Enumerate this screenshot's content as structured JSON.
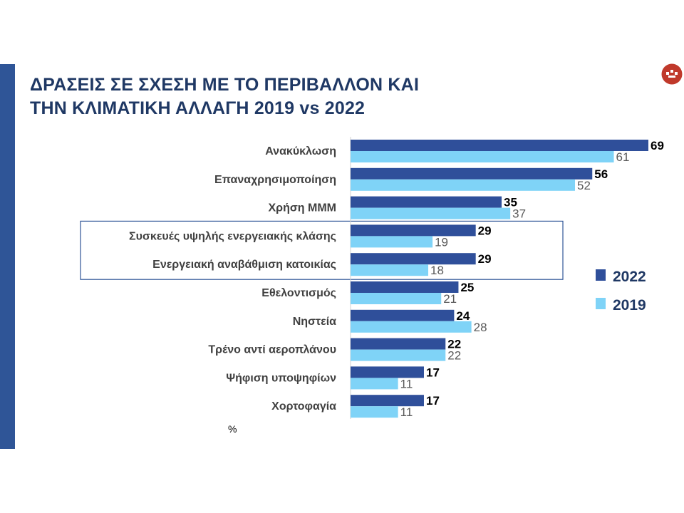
{
  "title_lines": [
    "ΔΡΑΣΕΙΣ ΣΕ ΣΧΕΣΗ ΜΕ ΤΟ ΠΕΡΙΒΑΛΛΟΝ ΚΑΙ",
    "ΤΗΝ ΚΛΙΜΑΤΙΚΗ ΑΛΛΑΓΗ 2019 vs 2022"
  ],
  "unit": "%",
  "colors": {
    "accent": "#2f5597",
    "title": "#1f3864",
    "series_2022": "#2f4f9a",
    "series_2019": "#7fd3f7",
    "highlight_box": "#2f5597",
    "logo": "#c0392b"
  },
  "logo_icon": "institution-logo-icon",
  "chart_data": {
    "type": "bar",
    "orientation": "horizontal",
    "categories": [
      "Ανακύκλωση",
      "Επαναχρησιμοποίηση",
      "Χρήση ΜΜΜ",
      "Συσκευές υψηλής ενεργειακής κλάσης",
      "Ενεργειακή αναβάθμιση κατοικίας",
      "Εθελοντισμός",
      "Νηστεία",
      "Τρένο αντί αεροπλάνου",
      "Ψήφιση υποψηφίων",
      "Χορτοφαγία"
    ],
    "series": [
      {
        "name": "2022",
        "values": [
          69,
          56,
          35,
          29,
          29,
          25,
          24,
          22,
          17,
          17
        ]
      },
      {
        "name": "2019",
        "values": [
          61,
          52,
          37,
          19,
          18,
          21,
          28,
          22,
          11,
          11
        ]
      }
    ],
    "xlim": [
      0,
      72
    ],
    "grid": false,
    "legend_position": "right",
    "highlighted_categories": [
      "Συσκευές υψηλής ενεργειακής κλάσης",
      "Ενεργειακή αναβάθμιση κατοικίας"
    ],
    "unit": "%"
  }
}
